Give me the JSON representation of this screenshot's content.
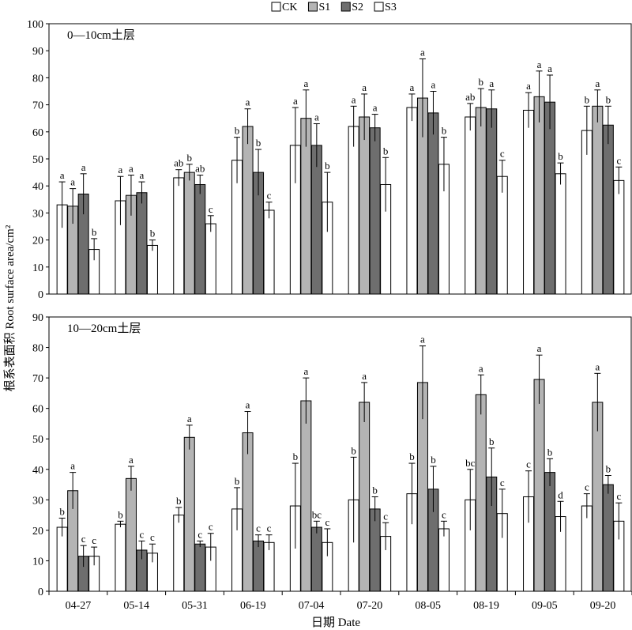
{
  "chart_data": {
    "type": "bar",
    "xlabel": "日期 Date",
    "ylabel": "根系表面积 Root surface area/cm²",
    "categories": [
      "04-27",
      "05-14",
      "05-31",
      "06-19",
      "07-04",
      "07-20",
      "08-05",
      "08-19",
      "09-05",
      "09-20"
    ],
    "legend": {
      "position": "top-center",
      "entries": [
        {
          "name": "CK",
          "fill": "#ffffff"
        },
        {
          "name": "S1",
          "fill": "#b4b4b4"
        },
        {
          "name": "S2",
          "fill": "#6e6e6e"
        },
        {
          "name": "S3",
          "fill": "#ffffff"
        }
      ]
    },
    "panels": [
      {
        "title": "0—10cm土层",
        "ylim": [
          0,
          100
        ],
        "yticks": [
          0,
          10,
          20,
          30,
          40,
          50,
          60,
          70,
          80,
          90,
          100
        ],
        "series": [
          {
            "name": "CK",
            "values": [
              33,
              34.5,
              43,
              49.5,
              55,
              62,
              69,
              65.5,
              68,
              60.5
            ],
            "errors": [
              8.5,
              9,
              3,
              8.5,
              14,
              7.5,
              5,
              5,
              6.5,
              9
            ],
            "letters": [
              "a",
              "a",
              "ab",
              "b",
              "a",
              "a",
              "a",
              "ab",
              "a",
              "b"
            ]
          },
          {
            "name": "S1",
            "values": [
              32.5,
              36.5,
              45,
              62,
              65,
              65.5,
              72.5,
              69,
              73,
              69.5
            ],
            "errors": [
              6.5,
              7.5,
              3,
              6.5,
              10.5,
              8.5,
              14.5,
              7,
              9.5,
              6
            ],
            "letters": [
              "a",
              "a",
              "b",
              "a",
              "a",
              "a",
              "a",
              "b",
              "a",
              "a"
            ]
          },
          {
            "name": "S2",
            "values": [
              37,
              37.5,
              40.5,
              45,
              55,
              61.5,
              67,
              68.5,
              71,
              62.5
            ],
            "errors": [
              7.5,
              4,
              3.5,
              8.5,
              8,
              5,
              8,
              7,
              10,
              7
            ],
            "letters": [
              "a",
              "a",
              "ab",
              "b",
              "a",
              "a",
              "a",
              "a",
              "a",
              "b"
            ]
          },
          {
            "name": "S3",
            "values": [
              16.5,
              18,
              26,
              31,
              34,
              40.5,
              48,
              43.5,
              44.5,
              42
            ],
            "errors": [
              4,
              2,
              3,
              3,
              11,
              10,
              10,
              6,
              4,
              5
            ],
            "letters": [
              "b",
              "b",
              "c",
              "c",
              "b",
              "b",
              "b",
              "c",
              "b",
              "c"
            ]
          }
        ]
      },
      {
        "title": "10—20cm土层",
        "ylim": [
          0,
          90
        ],
        "yticks": [
          0,
          10,
          20,
          30,
          40,
          50,
          60,
          70,
          80,
          90
        ],
        "series": [
          {
            "name": "CK",
            "values": [
              21,
              22,
              25,
              27,
              28,
              30,
              32,
              30,
              31,
              28
            ],
            "errors": [
              3,
              1,
              2.5,
              7,
              14,
              14,
              10,
              10,
              8.5,
              4
            ],
            "letters": [
              "b",
              "b",
              "b",
              "b",
              "b",
              "b",
              "b",
              "bc",
              "c",
              "c"
            ]
          },
          {
            "name": "S1",
            "values": [
              33,
              37,
              50.5,
              52,
              62.5,
              62,
              68.5,
              64.5,
              69.5,
              62
            ],
            "errors": [
              6,
              4,
              4,
              7,
              7.5,
              6.5,
              12,
              6.5,
              8,
              9.5
            ],
            "letters": [
              "a",
              "a",
              "a",
              "a",
              "a",
              "a",
              "a",
              "a",
              "a",
              "a"
            ]
          },
          {
            "name": "S2",
            "values": [
              11.5,
              13.5,
              15.5,
              16.5,
              21,
              27,
              33.5,
              37.5,
              39,
              35
            ],
            "errors": [
              3.5,
              3,
              1,
              2,
              2,
              4,
              7.5,
              9.5,
              4.5,
              3
            ],
            "letters": [
              "c",
              "c",
              "c",
              "c",
              "bc",
              "b",
              "b",
              "b",
              "b",
              "b"
            ]
          },
          {
            "name": "S3",
            "values": [
              11.5,
              12.5,
              14.5,
              16,
              16,
              18,
              20.5,
              25.5,
              24.5,
              23
            ],
            "errors": [
              3,
              3,
              4.5,
              2.5,
              4.5,
              4.5,
              2.5,
              8,
              5,
              6
            ],
            "letters": [
              "c",
              "c",
              "c",
              "c",
              "c",
              "c",
              "c",
              "c",
              "d",
              "c"
            ]
          }
        ]
      }
    ]
  }
}
